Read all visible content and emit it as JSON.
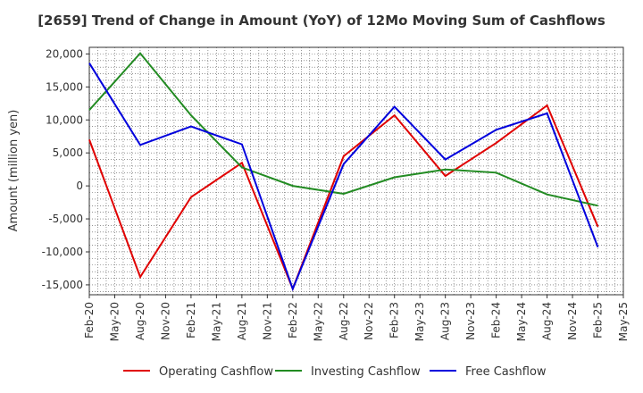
{
  "chart_data": {
    "type": "line",
    "title": "[2659]  Trend of Change in Amount (YoY) of 12Mo Moving Sum of Cashflows",
    "xlabel": "",
    "ylabel": "Amount (million yen)",
    "ylim": [
      -16500,
      21000
    ],
    "yticks": [
      20000,
      15000,
      10000,
      5000,
      0,
      -5000,
      -10000,
      -15000
    ],
    "ytick_labels": [
      "20,000",
      "15,000",
      "10,000",
      "5,000",
      "0",
      "-5,000",
      "-10,000",
      "-15,000"
    ],
    "x_tick_labels": [
      "Feb-20",
      "May-20",
      "Aug-20",
      "Nov-20",
      "Feb-21",
      "May-21",
      "Aug-21",
      "Nov-21",
      "Feb-22",
      "May-22",
      "Aug-22",
      "Nov-22",
      "Feb-23",
      "May-23",
      "Aug-23",
      "Nov-23",
      "Feb-24",
      "May-24",
      "Aug-24",
      "Nov-24",
      "Feb-25",
      "May-25"
    ],
    "x": [
      "Feb-20",
      "Aug-20",
      "Feb-21",
      "Aug-21",
      "Feb-22",
      "Aug-22",
      "Feb-23",
      "Aug-23",
      "Feb-24",
      "Aug-24",
      "Feb-25"
    ],
    "grid": true,
    "legend_position": "bottom",
    "series": [
      {
        "name": "Operating Cashflow",
        "color": "#e00000",
        "values": [
          7000,
          -13800,
          -1700,
          3500,
          -15600,
          4500,
          10700,
          1500,
          6500,
          12200,
          -6200
        ]
      },
      {
        "name": "Investing Cashflow",
        "color": "#228b22",
        "values": [
          11500,
          20100,
          10700,
          2800,
          0,
          -1200,
          1300,
          2500,
          2000,
          -1300,
          -3000
        ]
      },
      {
        "name": "Free Cashflow",
        "color": "#0000dd",
        "values": [
          18600,
          6200,
          9000,
          6300,
          -15600,
          3300,
          12000,
          4000,
          8500,
          11000,
          -9300
        ]
      }
    ]
  }
}
